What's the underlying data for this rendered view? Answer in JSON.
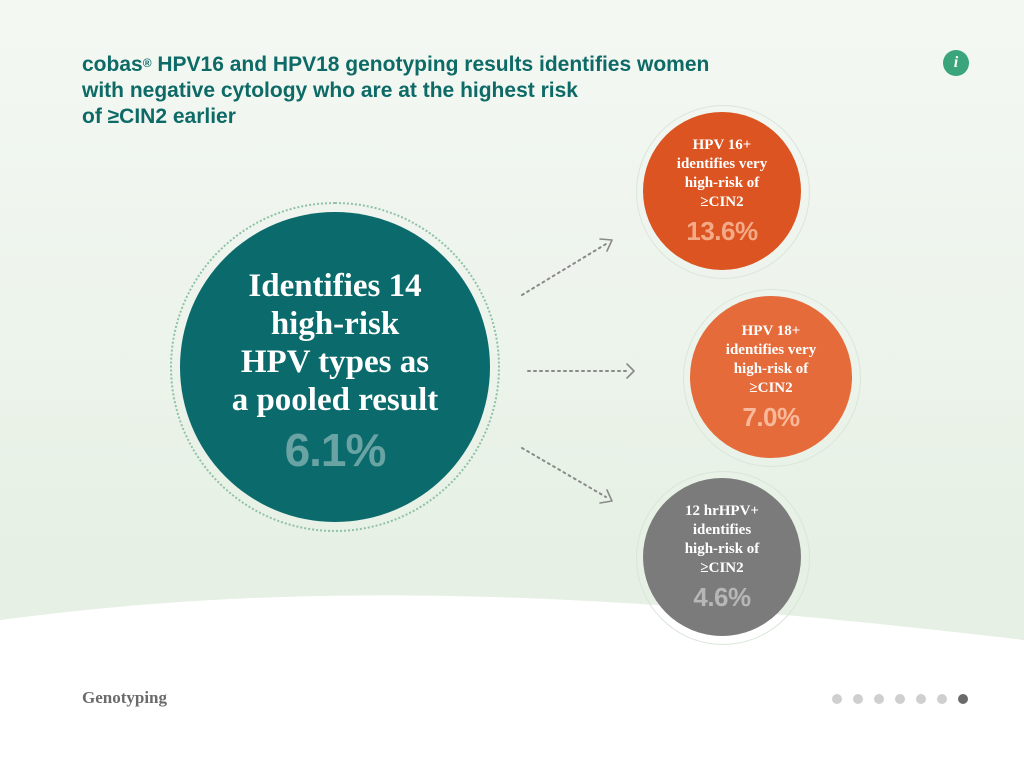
{
  "header": {
    "title_brand": "cobas",
    "title_reg": "®",
    "title_line1_rest": " HPV16 and HPV18 genotyping results identifies women",
    "title_line2": "with negative cytology who are at the highest risk",
    "title_line3": "of ≥CIN2 earlier",
    "info_icon_glyph": "i"
  },
  "main_circle": {
    "label_lines": [
      "Identifies 14",
      "high-risk",
      "HPV types as",
      "a pooled result"
    ],
    "value": "6.1%"
  },
  "outcomes": [
    {
      "label_lines": [
        "HPV 16+",
        "identifies very",
        "high-risk of",
        "≥CIN2"
      ],
      "value": "13.6%",
      "color": "#db5422"
    },
    {
      "label_lines": [
        "HPV 18+",
        "identifies very",
        "high-risk of",
        "≥CIN2"
      ],
      "value": "7.0%",
      "color": "#e56b3a"
    },
    {
      "label_lines": [
        "12 hrHPV+",
        "identifies",
        "high-risk of",
        "≥CIN2"
      ],
      "value": "4.6%",
      "color": "#7b7b7b"
    }
  ],
  "footer": {
    "section_label": "Genotyping",
    "pagination": {
      "total": 7,
      "current": 7
    }
  },
  "colors": {
    "brand_teal": "#0b6a6b",
    "title_teal": "#0e6a66",
    "info_green": "#3aa57a"
  },
  "icons": [
    "info-icon",
    "arrow-right-icon"
  ]
}
